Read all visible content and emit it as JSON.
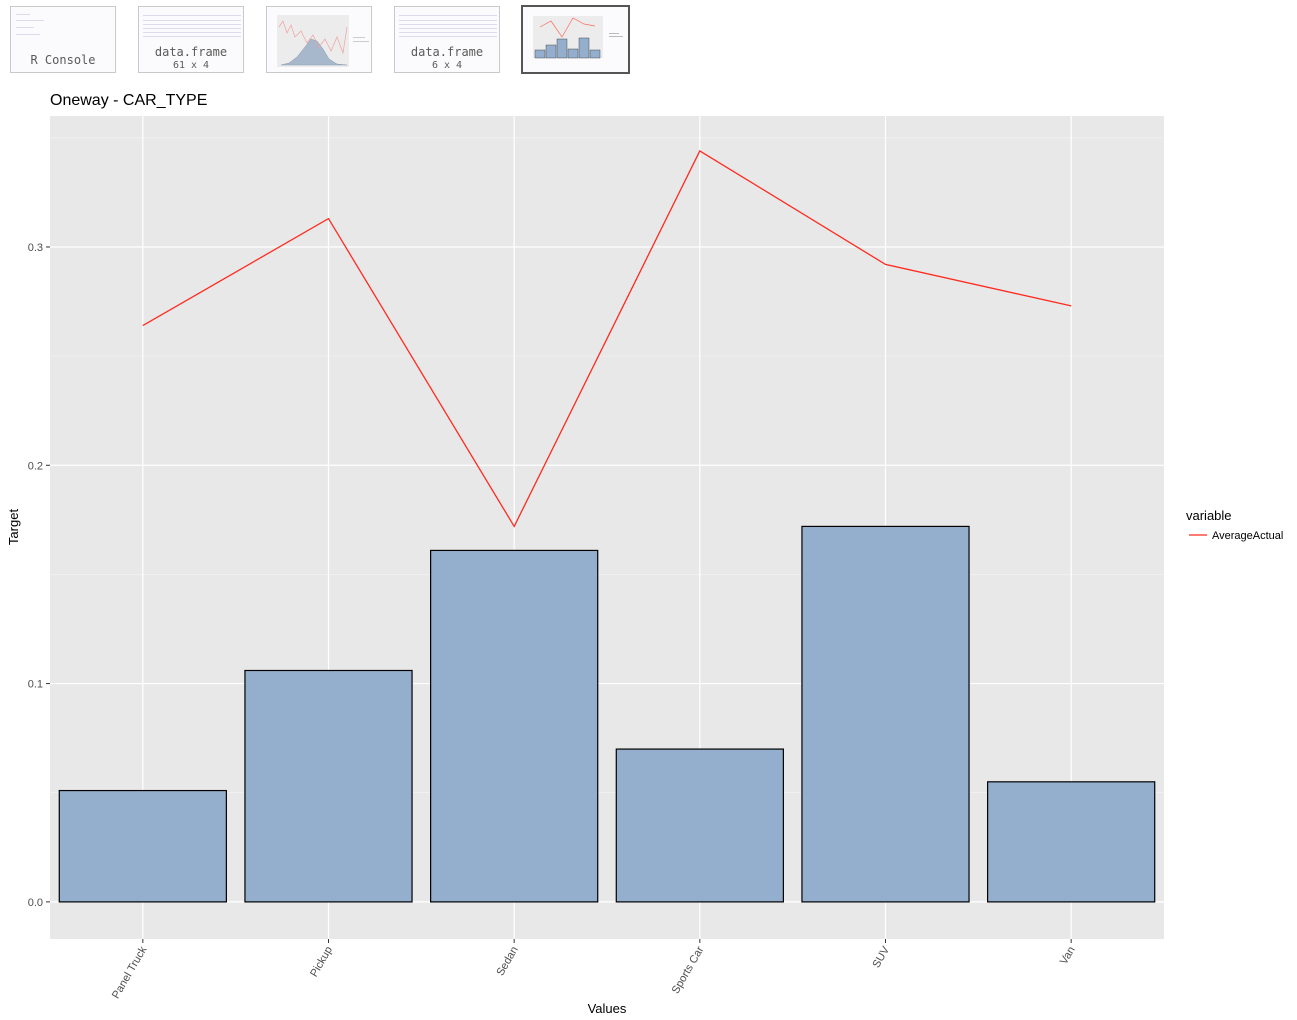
{
  "thumbnails": [
    {
      "id": "r-console",
      "label": "R Console",
      "sub": "",
      "selected": false
    },
    {
      "id": "df-61x4",
      "label": "data.frame",
      "sub": "61 x 4",
      "selected": false
    },
    {
      "id": "plot-hist",
      "label": "",
      "sub": "",
      "selected": false
    },
    {
      "id": "df-6x4",
      "label": "data.frame",
      "sub": "6 x 4",
      "selected": false
    },
    {
      "id": "plot-oneway",
      "label": "",
      "sub": "",
      "selected": true
    }
  ],
  "chart_data": {
    "type": "bar",
    "title": "Oneway - CAR_TYPE",
    "xlabel": "Values",
    "ylabel": "Target",
    "categories": [
      "Panel Truck",
      "Pickup",
      "Sedan",
      "Sports Car",
      "SUV",
      "Van"
    ],
    "series": [
      {
        "kind": "bar",
        "values": [
          0.051,
          0.106,
          0.161,
          0.07,
          0.172,
          0.055
        ],
        "color": "#93afcd"
      },
      {
        "kind": "line",
        "name": "AverageActual",
        "values": [
          0.264,
          0.313,
          0.172,
          0.344,
          0.292,
          0.273
        ],
        "color": "#ff2a1f"
      }
    ],
    "ylim": [
      -0.017,
      0.36
    ],
    "y_ticks": [
      0.0,
      0.1,
      0.2,
      0.3
    ],
    "y_tick_labels": [
      "0.0",
      "0.1",
      "0.2",
      "0.3"
    ],
    "legend": {
      "title": "variable",
      "position": "right",
      "entries": [
        "AverageActual"
      ]
    },
    "grid": true,
    "panel_color": "#e8e8e8"
  }
}
